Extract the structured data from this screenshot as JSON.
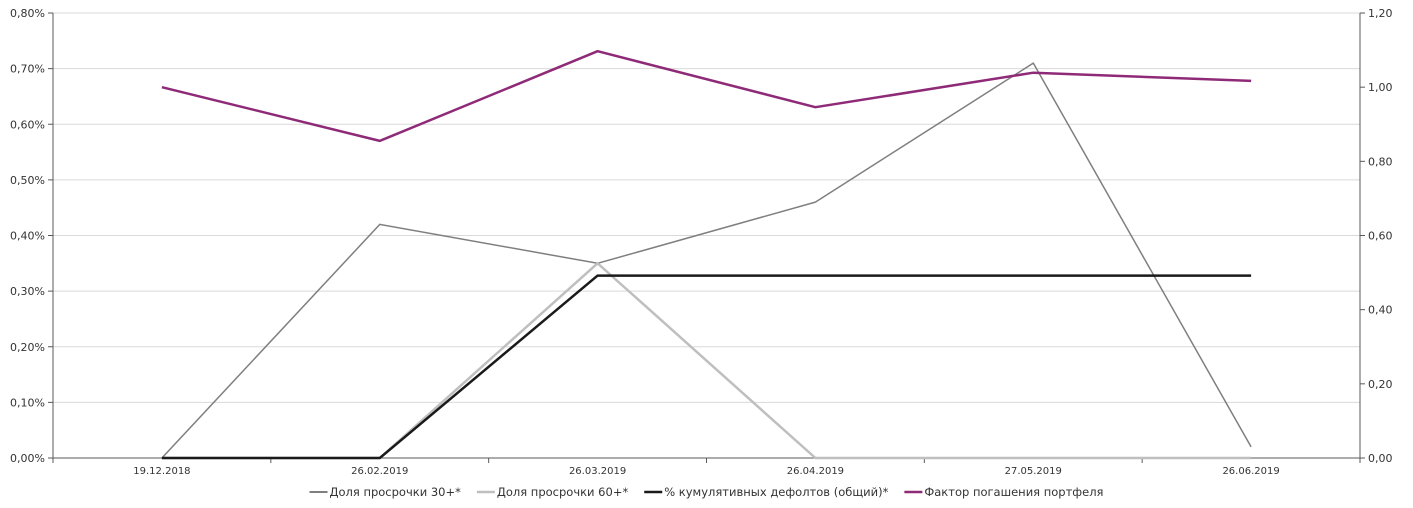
{
  "chart_data": {
    "type": "line",
    "categories": [
      "19.12.2018",
      "26.02.2019",
      "26.03.2019",
      "26.04.2019",
      "27.05.2019",
      "26.06.2019"
    ],
    "y_left": {
      "min": 0,
      "max": 0.8,
      "step": 0.1,
      "tick_labels": [
        "0,00%",
        "0,10%",
        "0,20%",
        "0,30%",
        "0,40%",
        "0,50%",
        "0,60%",
        "0,70%",
        "0,80%"
      ]
    },
    "y_right": {
      "min": 0,
      "max": 1.2,
      "step": 0.2,
      "tick_labels": [
        "0,00",
        "0,20",
        "0,40",
        "0,60",
        "0,80",
        "1,00",
        "1,20"
      ]
    },
    "grid": "horizontal",
    "legend_position": "bottom",
    "series": [
      {
        "name": "Доля просрочки 30+*",
        "axis": "left",
        "color": "#7f7f7f",
        "width": 1.5,
        "values": [
          0.0,
          0.42,
          0.35,
          0.46,
          0.71,
          0.02
        ]
      },
      {
        "name": "Доля просрочки 60+*",
        "axis": "left",
        "color": "#bfbfbf",
        "width": 2.5,
        "values": [
          0.0,
          0.0,
          0.35,
          0.0,
          0.0,
          0.0
        ]
      },
      {
        "name": "% кумулятивных дефолтов (общий)*",
        "axis": "left",
        "color": "#1a1a1a",
        "width": 2.5,
        "values": [
          0.0,
          0.0,
          0.328,
          0.328,
          0.328,
          0.328
        ]
      },
      {
        "name": "Фактор погашения портфеля",
        "axis": "right",
        "color": "#8e2a77",
        "width": 2.5,
        "values": [
          1.0,
          0.855,
          1.097,
          0.946,
          1.039,
          1.017
        ]
      }
    ]
  }
}
